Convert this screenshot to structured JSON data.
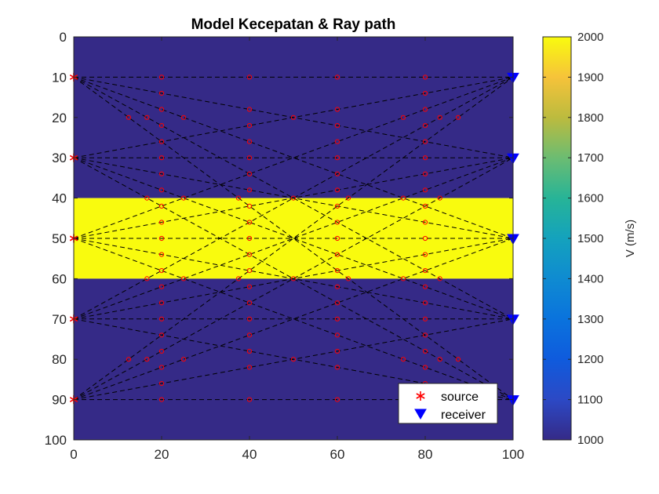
{
  "chart_data": {
    "type": "heatmap",
    "title": "Model Kecepatan & Ray path",
    "xlabel": "",
    "ylabel": "",
    "xlim": [
      0,
      100
    ],
    "ylim": [
      0,
      100
    ],
    "y_reversed": true,
    "x_ticks": [
      "0",
      "20",
      "40",
      "60",
      "80",
      "100"
    ],
    "y_ticks": [
      "0",
      "10",
      "20",
      "30",
      "40",
      "50",
      "60",
      "70",
      "80",
      "90",
      "100"
    ],
    "velocity_model": {
      "layers": [
        {
          "depth_top": 0,
          "depth_bottom": 40,
          "velocity": 1000
        },
        {
          "depth_top": 40,
          "depth_bottom": 60,
          "velocity": 2000
        },
        {
          "depth_top": 60,
          "depth_bottom": 100,
          "velocity": 1000
        }
      ]
    },
    "colorbar": {
      "label": "V (m/s)",
      "range": [
        1000,
        2000
      ],
      "ticks": [
        "1000",
        "1100",
        "1200",
        "1300",
        "1400",
        "1500",
        "1600",
        "1700",
        "1800",
        "1900",
        "2000"
      ]
    },
    "sources": {
      "x": 0,
      "depths": [
        10,
        30,
        50,
        70,
        90
      ],
      "marker": "asterisk",
      "color": "#ff0000"
    },
    "receivers": {
      "x": 100,
      "depths": [
        10,
        30,
        50,
        70,
        90
      ],
      "marker": "triangle-down",
      "color": "#0000ff"
    },
    "ray_paths": "straight dashed lines from every source to every receiver",
    "cell_intersections": {
      "grid_x_spacing": 20,
      "grid_y_spacing": 20,
      "marker": "open-circle",
      "color": "#ff0000"
    },
    "legend": {
      "position": "bottom-right",
      "entries": [
        {
          "label": "source",
          "marker": "asterisk",
          "color": "#ff0000"
        },
        {
          "label": "receiver",
          "marker": "triangle-down",
          "color": "#0000ff"
        }
      ]
    },
    "colors": {
      "low_velocity": "#352a87",
      "high_velocity": "#f9fb0e",
      "ray": "#000000",
      "intersection": "#ff0000"
    }
  }
}
